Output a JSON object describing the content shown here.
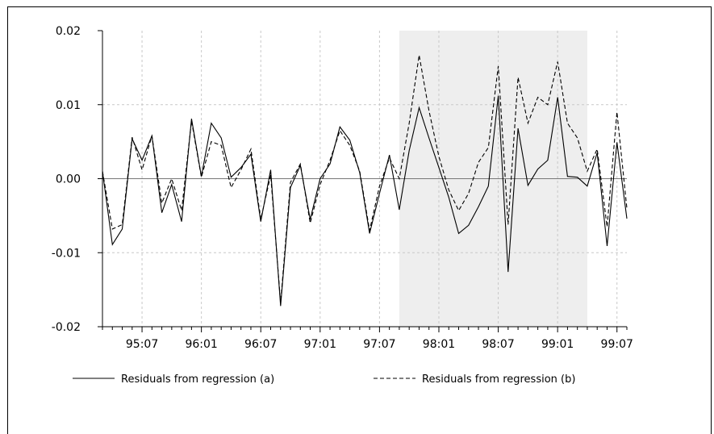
{
  "chart_data": {
    "type": "line",
    "title": "",
    "xlabel": "",
    "ylabel": "",
    "ylim": [
      -0.02,
      0.02
    ],
    "y_ticks": [
      "0.02",
      "0.01",
      "0.00",
      "-0.01",
      "-0.02"
    ],
    "x_tick_labels": [
      "95:07",
      "96:01",
      "96:07",
      "97:01",
      "97:07",
      "98:01",
      "98:07",
      "99:01",
      "99:07"
    ],
    "shaded_region": {
      "start": "1997-09",
      "end": "1999-04"
    },
    "grid": true,
    "legend_position": "bottom",
    "x": [
      "1995-03",
      "1995-04",
      "1995-05",
      "1995-06",
      "1995-07",
      "1995-08",
      "1995-09",
      "1995-10",
      "1995-11",
      "1995-12",
      "1996-01",
      "1996-02",
      "1996-03",
      "1996-04",
      "1996-05",
      "1996-06",
      "1996-07",
      "1996-08",
      "1996-09",
      "1996-10",
      "1996-11",
      "1996-12",
      "1997-01",
      "1997-02",
      "1997-03",
      "1997-04",
      "1997-05",
      "1997-06",
      "1997-07",
      "1997-08",
      "1997-09",
      "1997-10",
      "1997-11",
      "1997-12",
      "1998-01",
      "1998-02",
      "1998-03",
      "1998-04",
      "1998-05",
      "1998-06",
      "1998-07",
      "1998-08",
      "1998-09",
      "1998-10",
      "1998-11",
      "1998-12",
      "1999-01",
      "1999-02",
      "1999-03",
      "1999-04",
      "1999-05",
      "1999-06",
      "1999-07",
      "1999-08"
    ],
    "series": [
      {
        "name": "Residuals from regression (a)",
        "style": "solid",
        "values": [
          0.001,
          -0.0089,
          -0.0068,
          0.0054,
          0.0025,
          0.0058,
          -0.0046,
          -0.0008,
          -0.0058,
          0.0081,
          0.0003,
          0.0075,
          0.0055,
          0.0002,
          0.0015,
          0.0033,
          -0.0058,
          0.0012,
          -0.0172,
          -0.0012,
          0.0018,
          -0.0055,
          0.0,
          0.002,
          0.007,
          0.0052,
          0.0008,
          -0.0074,
          -0.002,
          0.0032,
          -0.0042,
          0.0038,
          0.0096,
          0.0055,
          0.0015,
          -0.0025,
          -0.0074,
          -0.0063,
          -0.0038,
          -0.001,
          0.0112,
          -0.0126,
          0.0068,
          -0.0009,
          0.0013,
          0.0025,
          0.011,
          0.0003,
          0.0002,
          -0.001,
          0.0035,
          -0.0091,
          0.0049,
          -0.0054
        ]
      },
      {
        "name": "Residuals from regression (b)",
        "style": "dashed",
        "values": [
          0.001,
          -0.0068,
          -0.0062,
          0.0056,
          0.0012,
          0.0058,
          -0.0033,
          0.0,
          -0.0043,
          0.0078,
          0.0002,
          0.005,
          0.0045,
          -0.0012,
          0.0012,
          0.004,
          -0.0055,
          0.0005,
          -0.0168,
          -0.0005,
          0.002,
          -0.006,
          -0.0008,
          0.0025,
          0.0065,
          0.0045,
          0.001,
          -0.007,
          -0.001,
          0.0028,
          0.0,
          0.0075,
          0.0167,
          0.0092,
          0.003,
          -0.0015,
          -0.0043,
          -0.002,
          0.0022,
          0.0042,
          0.0152,
          -0.0062,
          0.0137,
          0.0075,
          0.011,
          0.01,
          0.0158,
          0.0075,
          0.0055,
          0.001,
          0.004,
          -0.0065,
          0.009,
          -0.004
        ]
      }
    ]
  }
}
